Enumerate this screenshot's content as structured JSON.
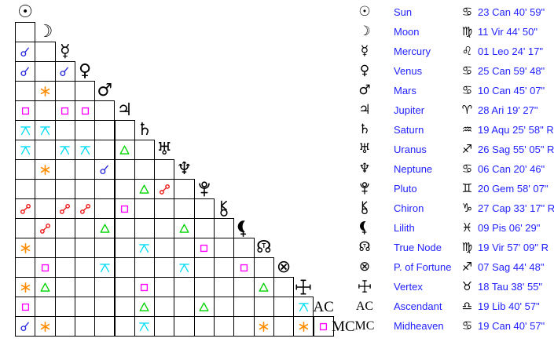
{
  "chart_data": {
    "type": "table",
    "title": "Astrological aspect grid with planet positions",
    "text_color": "#2222ff",
    "line_color": "#000000",
    "aspect_colors": {
      "conjunction": "#2424dd",
      "sextile": "#ff8c00",
      "square": "#ff00ff",
      "trine": "#00d400",
      "opposition": "#ee1111",
      "quincunx": "#00ddf5"
    },
    "planets": [
      {
        "name": "Sun",
        "glyph_type": "text",
        "glyph": "☉",
        "sign_glyph": "♋",
        "position": "23 Can 40' 59\"",
        "retro": ""
      },
      {
        "name": "Moon",
        "glyph_type": "text",
        "glyph": "☽",
        "sign_glyph": "♍",
        "position": "11 Vir 44' 50\"",
        "retro": ""
      },
      {
        "name": "Mercury",
        "glyph_type": "text",
        "glyph": "☿",
        "sign_glyph": "♌",
        "position": "01 Leo 24' 17\"",
        "retro": ""
      },
      {
        "name": "Venus",
        "glyph_type": "text",
        "glyph": "♀",
        "sign_glyph": "♋",
        "position": "25 Can 59' 48\"",
        "retro": ""
      },
      {
        "name": "Mars",
        "glyph_type": "text",
        "glyph": "♂",
        "sign_glyph": "♋",
        "position": "10 Can 45' 07\"",
        "retro": ""
      },
      {
        "name": "Jupiter",
        "glyph_type": "text",
        "glyph": "♃",
        "sign_glyph": "♈",
        "position": "28 Ari 19' 27\"",
        "retro": ""
      },
      {
        "name": "Saturn",
        "glyph_type": "text",
        "glyph": "♄",
        "sign_glyph": "♒",
        "position": "19 Aqu 25' 58\"",
        "retro": "R"
      },
      {
        "name": "Uranus",
        "glyph_type": "text",
        "glyph": "♅",
        "sign_glyph": "♐",
        "position": "26 Sag 55' 05\"",
        "retro": "R"
      },
      {
        "name": "Neptune",
        "glyph_type": "text",
        "glyph": "♆",
        "sign_glyph": "♋",
        "position": "06 Can 20' 46\"",
        "retro": ""
      },
      {
        "name": "Pluto",
        "glyph_type": "svg",
        "glyph": "pluto",
        "sign_glyph": "♊",
        "position": "20 Gem 58' 07\"",
        "retro": ""
      },
      {
        "name": "Chiron",
        "glyph_type": "svg",
        "glyph": "chiron",
        "sign_glyph": "♑",
        "position": "27 Cap 33' 17\"",
        "retro": "R"
      },
      {
        "name": "Lilith",
        "glyph_type": "svg",
        "glyph": "lilith",
        "sign_glyph": "♓",
        "position": "09 Pis 06' 29\"",
        "retro": ""
      },
      {
        "name": "True Node",
        "glyph_type": "node",
        "glyph": "☊",
        "sign_glyph": "♍",
        "position": "19 Vir 57' 09\"",
        "retro": "R"
      },
      {
        "name": "P. of Fortune",
        "glyph_type": "text",
        "glyph": "⊗",
        "sign_glyph": "♐",
        "position": "07 Sag 44' 48\"",
        "retro": ""
      },
      {
        "name": "Vertex",
        "glyph_type": "svg",
        "glyph": "vertex",
        "sign_glyph": "♉",
        "position": "18 Tau 38' 55\"",
        "retro": ""
      },
      {
        "name": "Ascendant",
        "glyph_type": "serif",
        "glyph": "AC",
        "sign_glyph": "♎",
        "position": "19 Lib 40' 57\"",
        "retro": ""
      },
      {
        "name": "Midheaven",
        "glyph_type": "serif",
        "glyph": "MC",
        "sign_glyph": "♋",
        "position": "19 Can 40' 57\"",
        "retro": ""
      }
    ],
    "aspects": [
      {
        "r": 2,
        "c": 0,
        "t": "conjunction"
      },
      {
        "r": 3,
        "c": 0,
        "t": "conjunction"
      },
      {
        "r": 3,
        "c": 2,
        "t": "conjunction"
      },
      {
        "r": 4,
        "c": 1,
        "t": "sextile"
      },
      {
        "r": 5,
        "c": 0,
        "t": "square"
      },
      {
        "r": 5,
        "c": 2,
        "t": "square"
      },
      {
        "r": 5,
        "c": 3,
        "t": "square"
      },
      {
        "r": 6,
        "c": 0,
        "t": "quincunx"
      },
      {
        "r": 6,
        "c": 1,
        "t": "quincunx"
      },
      {
        "r": 7,
        "c": 0,
        "t": "quincunx"
      },
      {
        "r": 7,
        "c": 2,
        "t": "quincunx"
      },
      {
        "r": 7,
        "c": 3,
        "t": "quincunx"
      },
      {
        "r": 7,
        "c": 5,
        "t": "trine"
      },
      {
        "r": 8,
        "c": 1,
        "t": "sextile"
      },
      {
        "r": 8,
        "c": 4,
        "t": "conjunction"
      },
      {
        "r": 9,
        "c": 6,
        "t": "trine"
      },
      {
        "r": 9,
        "c": 7,
        "t": "opposition"
      },
      {
        "r": 10,
        "c": 0,
        "t": "opposition"
      },
      {
        "r": 10,
        "c": 2,
        "t": "opposition"
      },
      {
        "r": 10,
        "c": 3,
        "t": "opposition"
      },
      {
        "r": 10,
        "c": 5,
        "t": "square"
      },
      {
        "r": 11,
        "c": 1,
        "t": "opposition"
      },
      {
        "r": 11,
        "c": 4,
        "t": "trine"
      },
      {
        "r": 11,
        "c": 8,
        "t": "trine"
      },
      {
        "r": 12,
        "c": 0,
        "t": "sextile"
      },
      {
        "r": 12,
        "c": 6,
        "t": "quincunx"
      },
      {
        "r": 12,
        "c": 9,
        "t": "square"
      },
      {
        "r": 13,
        "c": 1,
        "t": "square"
      },
      {
        "r": 13,
        "c": 4,
        "t": "quincunx"
      },
      {
        "r": 13,
        "c": 8,
        "t": "quincunx"
      },
      {
        "r": 13,
        "c": 11,
        "t": "square"
      },
      {
        "r": 14,
        "c": 0,
        "t": "sextile"
      },
      {
        "r": 14,
        "c": 1,
        "t": "trine"
      },
      {
        "r": 14,
        "c": 6,
        "t": "square"
      },
      {
        "r": 14,
        "c": 12,
        "t": "trine"
      },
      {
        "r": 15,
        "c": 0,
        "t": "square"
      },
      {
        "r": 15,
        "c": 6,
        "t": "trine"
      },
      {
        "r": 15,
        "c": 9,
        "t": "trine"
      },
      {
        "r": 15,
        "c": 14,
        "t": "quincunx"
      },
      {
        "r": 16,
        "c": 0,
        "t": "conjunction"
      },
      {
        "r": 16,
        "c": 1,
        "t": "sextile"
      },
      {
        "r": 16,
        "c": 6,
        "t": "quincunx"
      },
      {
        "r": 16,
        "c": 12,
        "t": "sextile"
      },
      {
        "r": 16,
        "c": 14,
        "t": "sextile"
      },
      {
        "r": 16,
        "c": 15,
        "t": "square"
      }
    ]
  }
}
